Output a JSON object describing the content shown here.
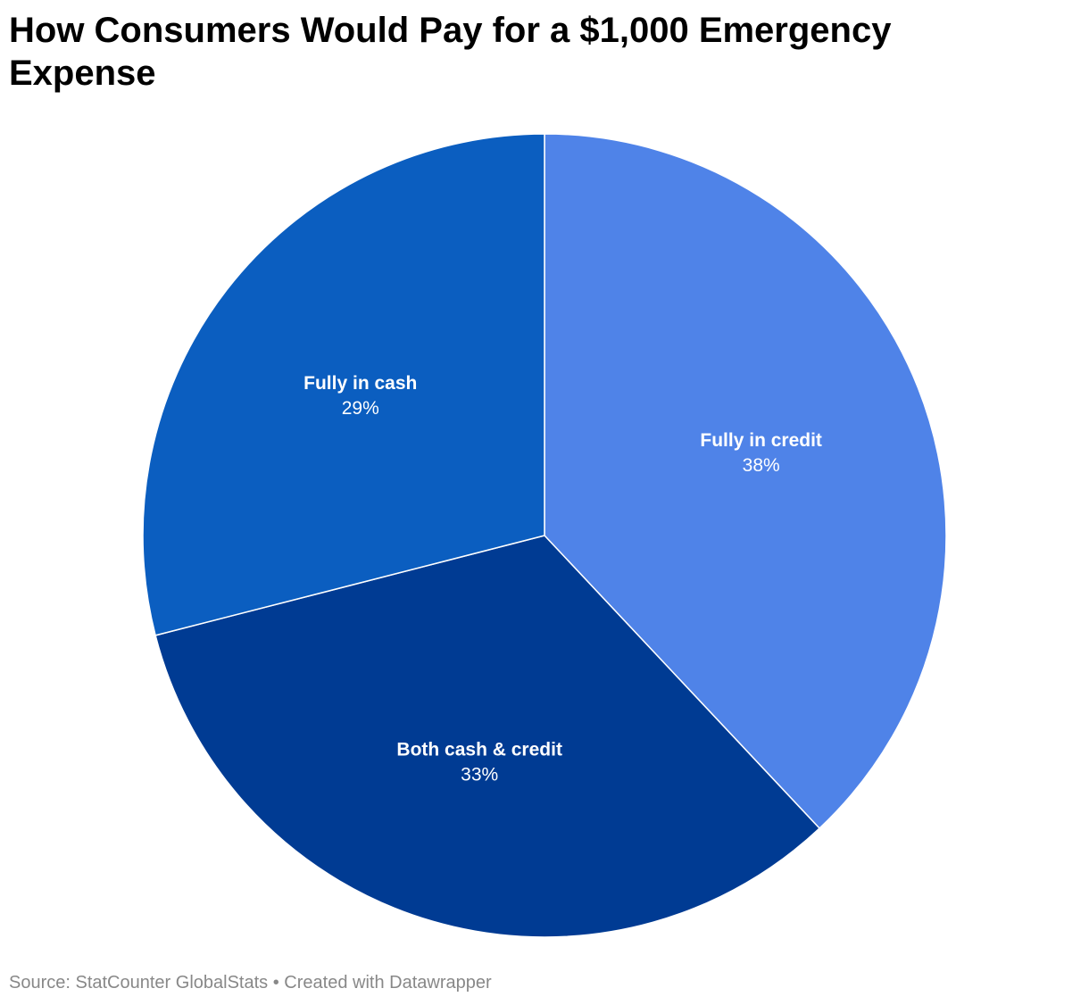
{
  "chart_data": {
    "type": "pie",
    "title": "How Consumers Would Pay for a $1,000 Emergency Expense",
    "slices": [
      {
        "label": "Fully in credit",
        "value": 38,
        "display": "38%",
        "color": "#4f83e8"
      },
      {
        "label": "Both cash & credit",
        "value": 33,
        "display": "33%",
        "color": "#003b93"
      },
      {
        "label": "Fully in cash",
        "value": 29,
        "display": "29%",
        "color": "#0b5ec0"
      }
    ],
    "start": "12 o'clock",
    "direction": "clockwise"
  },
  "footer": {
    "source": "Source: StatCounter GlobalStats",
    "separator": "•",
    "credit": "Created with Datawrapper"
  }
}
